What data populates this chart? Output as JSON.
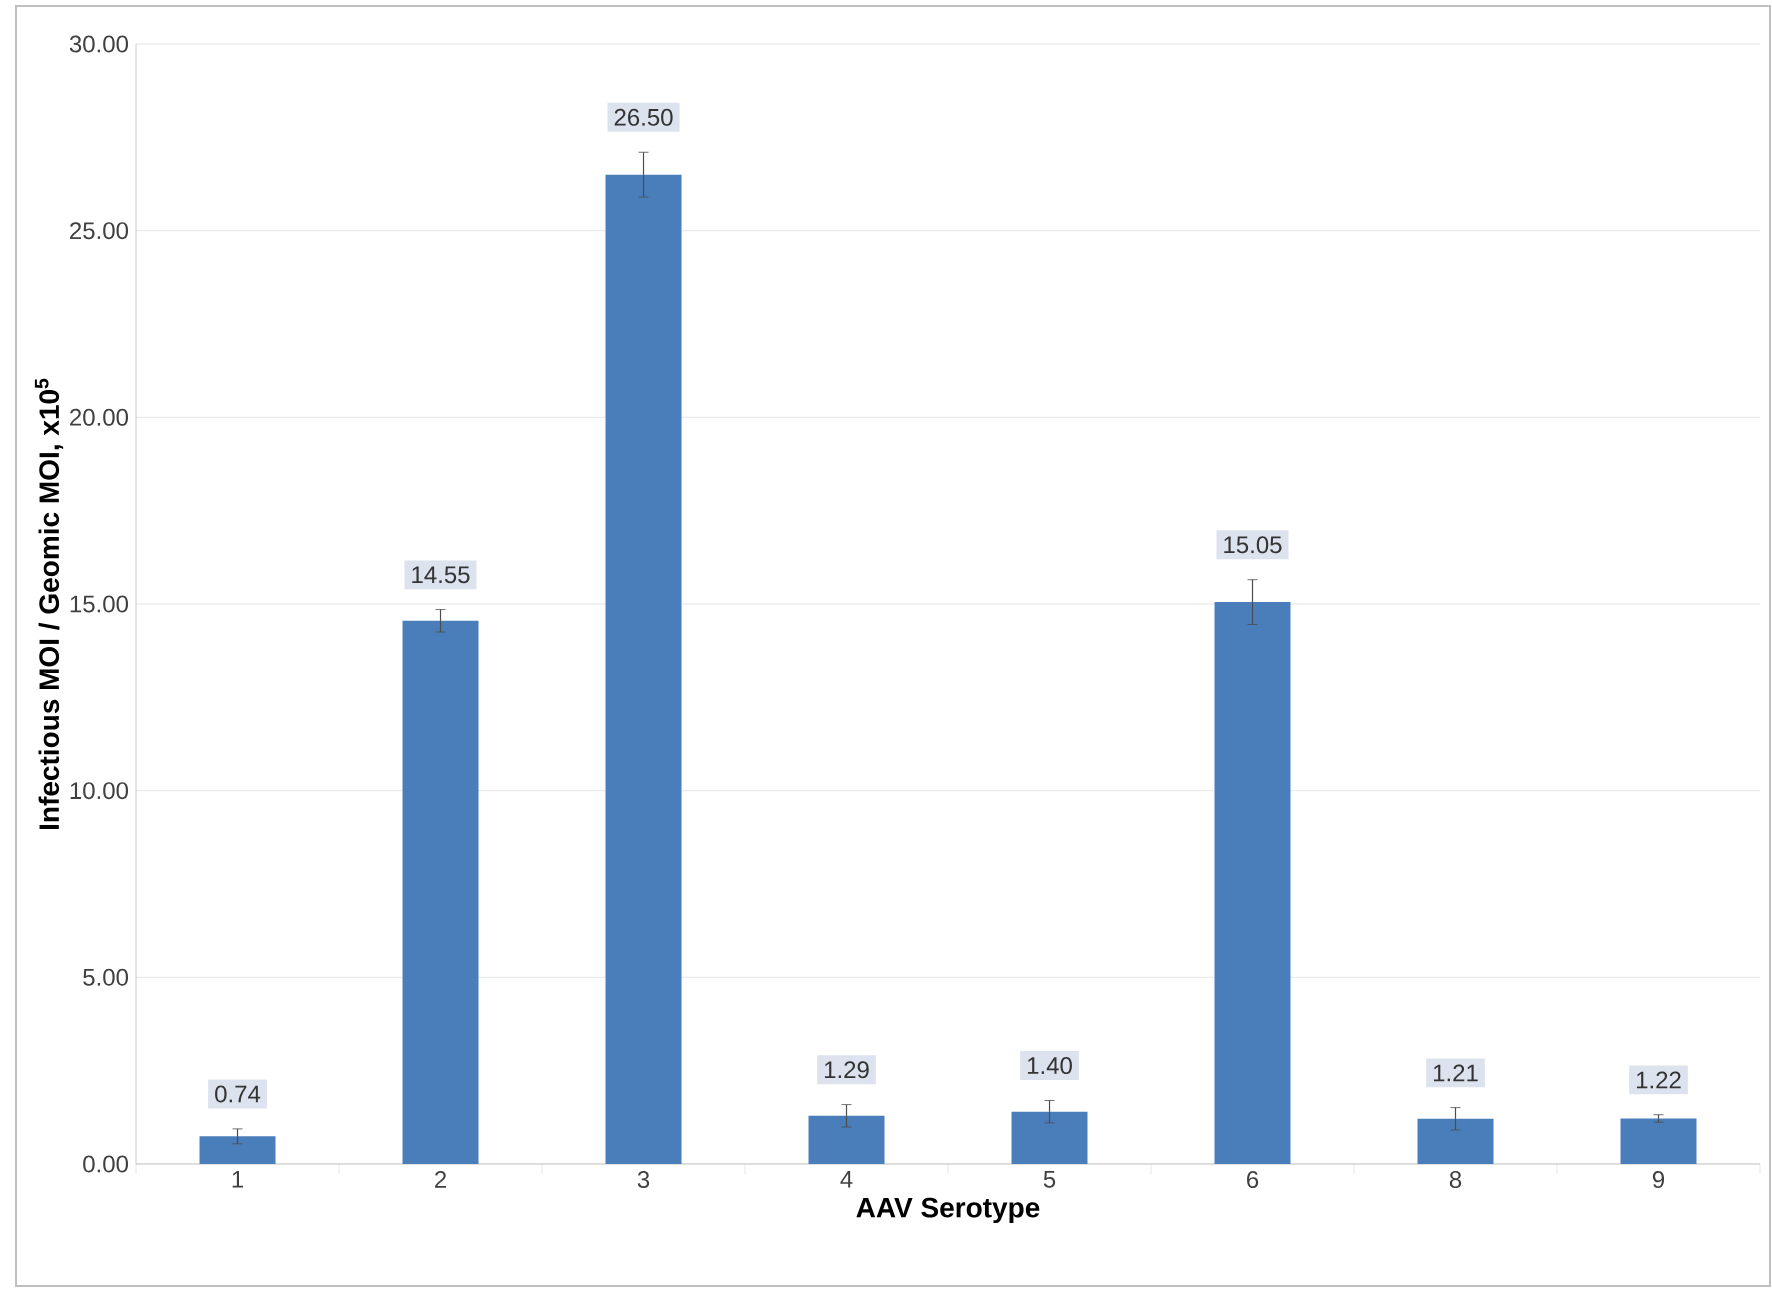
{
  "chart_data": {
    "type": "bar",
    "xlabel": "AAV Serotype",
    "ylabel": "Infectious MOI / Geomic MOI, x10$^{5}$",
    "categories": [
      "1",
      "2",
      "3",
      "4",
      "5",
      "6",
      "8",
      "9"
    ],
    "values": [
      0.74,
      14.55,
      26.5,
      1.29,
      1.4,
      15.05,
      1.21,
      1.22
    ],
    "value_labels": [
      "0.74",
      "14.55",
      "26.50",
      "1.29",
      "1.40",
      "15.05",
      "1.21",
      "1.22"
    ],
    "errors": [
      0.2,
      0.3,
      0.6,
      0.3,
      0.3,
      0.6,
      0.3,
      0.1
    ],
    "color": "#4a7ebb",
    "ylim": [
      0,
      30
    ],
    "yticks": [
      {
        "value": 0,
        "label": "0.00"
      },
      {
        "value": 5,
        "label": "5.00"
      },
      {
        "value": 10,
        "label": "10.00"
      },
      {
        "value": 15,
        "label": "15.00"
      },
      {
        "value": 20,
        "label": "20.00"
      },
      {
        "value": 25,
        "label": "25.00"
      },
      {
        "value": 30,
        "label": "30.00"
      }
    ],
    "grid": "y"
  }
}
